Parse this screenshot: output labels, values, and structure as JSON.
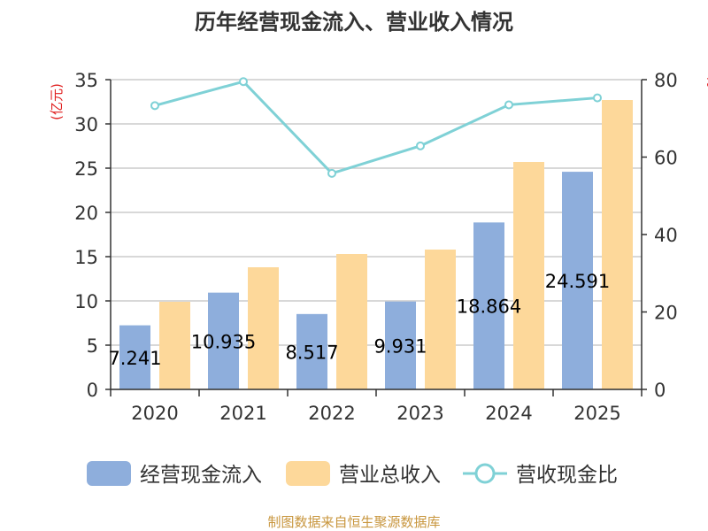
{
  "chart_data": {
    "type": "bar",
    "title": "历年经营现金流入、营业收入情况",
    "categories": [
      "2020",
      "2021",
      "2022",
      "2023",
      "2024",
      "2025"
    ],
    "series": [
      {
        "name": "经营现金流入",
        "kind": "bar",
        "axis": "left",
        "color": "#8eaedc",
        "values": [
          7.241,
          10.935,
          8.517,
          9.931,
          18.864,
          24.591
        ],
        "labels": [
          "7.241",
          "10.935",
          "8.517",
          "9.931",
          "18.864",
          "24.591"
        ]
      },
      {
        "name": "营业总收入",
        "kind": "bar",
        "axis": "left",
        "color": "#fdd89a",
        "values": [
          9.9,
          13.8,
          15.3,
          15.8,
          25.7,
          32.7
        ]
      },
      {
        "name": "营收现金比",
        "kind": "line",
        "axis": "right",
        "color": "#7fd1d6",
        "values": [
          73.3,
          79.5,
          55.8,
          62.9,
          73.5,
          75.3
        ]
      }
    ],
    "y_left": {
      "label": "(亿元)",
      "ylim": [
        0,
        35
      ],
      "ticks": [
        "0",
        "5",
        "10",
        "15",
        "20",
        "25",
        "30",
        "35"
      ]
    },
    "y_right": {
      "label": "%",
      "ylim": [
        0,
        80
      ],
      "ticks": [
        "0",
        "20",
        "40",
        "60",
        "80"
      ]
    },
    "legend_position": "bottom",
    "grid": true,
    "source": "制图数据来自恒生聚源数据库"
  }
}
